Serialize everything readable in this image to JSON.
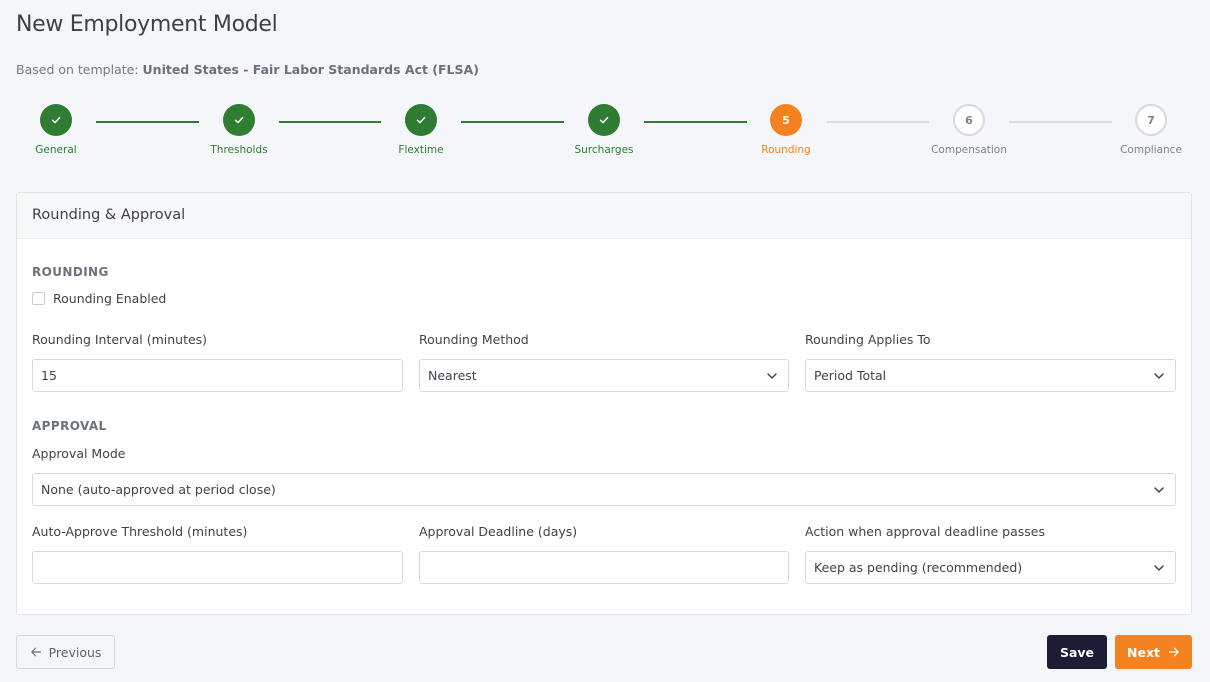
{
  "header": {
    "title": "New Employment Model",
    "template_prefix": "Based on template:",
    "template_name": "United States - Fair Labor Standards Act (FLSA)"
  },
  "stepper": {
    "steps": [
      {
        "label": "General",
        "number": "1",
        "state": "done"
      },
      {
        "label": "Thresholds",
        "number": "2",
        "state": "done"
      },
      {
        "label": "Flextime",
        "number": "3",
        "state": "done"
      },
      {
        "label": "Surcharges",
        "number": "4",
        "state": "done"
      },
      {
        "label": "Rounding",
        "number": "5",
        "state": "active"
      },
      {
        "label": "Compensation",
        "number": "6",
        "state": "pending"
      },
      {
        "label": "Compliance",
        "number": "7",
        "state": "pending"
      }
    ]
  },
  "card": {
    "title": "Rounding & Approval",
    "rounding_section": "ROUNDING",
    "rounding_enabled_label": "Rounding Enabled",
    "rounding_enabled_checked": false,
    "interval_label": "Rounding Interval (minutes)",
    "interval_value": "15",
    "method_label": "Rounding Method",
    "method_value": "Nearest",
    "applies_label": "Rounding Applies To",
    "applies_value": "Period Total",
    "approval_section": "APPROVAL",
    "approval_mode_label": "Approval Mode",
    "approval_mode_value": "None (auto-approved at period close)",
    "auto_threshold_label": "Auto-Approve Threshold (minutes)",
    "auto_threshold_value": "",
    "deadline_label": "Approval Deadline (days)",
    "deadline_value": "",
    "deadline_action_label": "Action when approval deadline passes",
    "deadline_action_value": "Keep as pending (recommended)"
  },
  "footer": {
    "previous_label": "Previous",
    "save_label": "Save",
    "next_label": "Next"
  },
  "colors": {
    "done": "#2e7d32",
    "active": "#f58220",
    "save_button": "#1c1d35"
  },
  "icons": {
    "check": "check-icon",
    "chevron": "chevron-down-icon",
    "arrow_left": "arrow-left-icon",
    "arrow_right": "arrow-right-icon"
  }
}
